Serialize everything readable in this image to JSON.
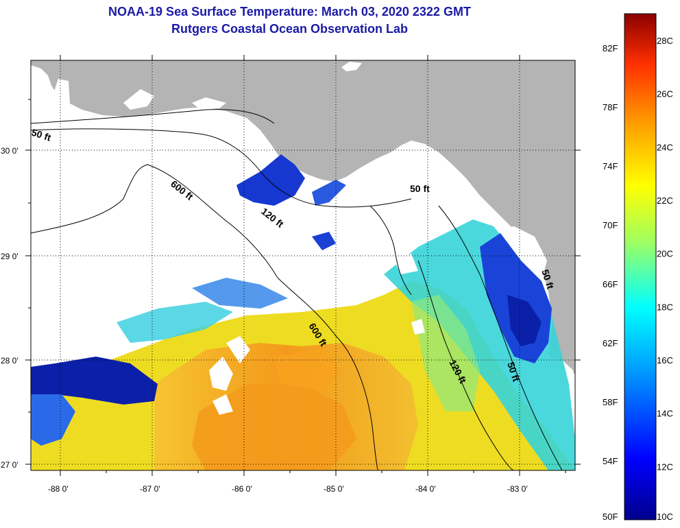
{
  "title_line1": "NOAA-19 Sea Surface Temperature:  March 03, 2020 2322 GMT",
  "title_line2": "Rutgers Coastal Ocean Observation Lab",
  "map": {
    "lat_ticks": [
      "27 0'",
      "28 0'",
      "29 0'",
      "30 0'"
    ],
    "lon_ticks": [
      "-88 0'",
      "-87 0'",
      "-86 0'",
      "-85 0'",
      "-84 0'",
      "-83 0'"
    ],
    "land_color": "#b4b4b4",
    "cloud_color": "#ffffff",
    "contour_labels": [
      {
        "text": "50 ft"
      },
      {
        "text": "600 ft"
      },
      {
        "text": "120 ft"
      },
      {
        "text": "50 ft"
      },
      {
        "text": "600 ft"
      },
      {
        "text": "120 ft"
      },
      {
        "text": "50 ft"
      },
      {
        "text": "50 ft"
      }
    ]
  },
  "colorbar": {
    "colors": [
      "#00008b",
      "#0000ff",
      "#00a0ff",
      "#00ffff",
      "#a0ff60",
      "#ffff00",
      "#ffa000",
      "#ff3000",
      "#8b0000"
    ],
    "fahrenheit_labels": [
      "50F",
      "54F",
      "58F",
      "62F",
      "66F",
      "70F",
      "74F",
      "78F",
      "82F"
    ],
    "celsius_labels": [
      "10C",
      "12C",
      "14C",
      "16C",
      "18C",
      "20C",
      "22C",
      "24C",
      "26C",
      "28C"
    ]
  }
}
